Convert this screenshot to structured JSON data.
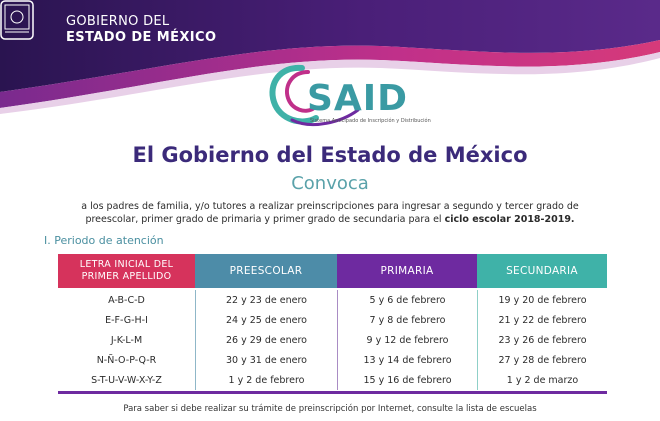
{
  "header": {
    "gov_line1": "GOBIERNO DEL",
    "gov_line2": "ESTADO DE MÉXICO",
    "colors": {
      "purple": "#3b1a6e",
      "magenta": "#b02a8c",
      "teal": "#3fb2a8"
    }
  },
  "logo": {
    "word": "SAID",
    "subtitle": "Sistema Anticipado de Inscripción y Distribución"
  },
  "title": "El Gobierno del Estado de México",
  "subtitle": "Convoca",
  "intro": {
    "line1": "a los padres de familia, y/o tutores a realizar preinscripciones para ingresar a segundo y tercer grado de",
    "line2_pre": "preescolar, primer grado de primaria y primer grado de secundaria para el ",
    "line2_bold": "ciclo escolar 2018-2019."
  },
  "section_label": "I. Periodo de atención",
  "table": {
    "headers": {
      "letra_l1": "LETRA INICIAL DEL",
      "letra_l2": "PRIMER APELLIDO",
      "preescolar": "PREESCOLAR",
      "primaria": "PRIMARIA",
      "secundaria": "SECUNDARIA"
    },
    "rows": [
      {
        "letra": "A-B-C-D",
        "preescolar": "22 y 23 de enero",
        "primaria": "5 y 6 de febrero",
        "secundaria": "19 y 20 de febrero"
      },
      {
        "letra": "E-F-G-H-I",
        "preescolar": "24 y 25 de enero",
        "primaria": "7 y 8 de febrero",
        "secundaria": "21 y 22 de febrero"
      },
      {
        "letra": "J-K-L-M",
        "preescolar": "26 y 29 de enero",
        "primaria": "9 y 12 de febrero",
        "secundaria": "23 y 26 de febrero"
      },
      {
        "letra": "N-Ñ-O-P-Q-R",
        "preescolar": "30 y 31 de enero",
        "primaria": "13 y 14 de febrero",
        "secundaria": "27 y 28 de febrero"
      },
      {
        "letra": "S-T-U-V-W-X-Y-Z",
        "preescolar": "1 y 2 de febrero",
        "primaria": "15 y 16 de febrero",
        "secundaria": "1 y 2 de marzo"
      }
    ]
  },
  "footer": {
    "line1": "Para saber si debe realizar su trámite de preinscripción por Internet, consulte la lista de escuelas"
  }
}
